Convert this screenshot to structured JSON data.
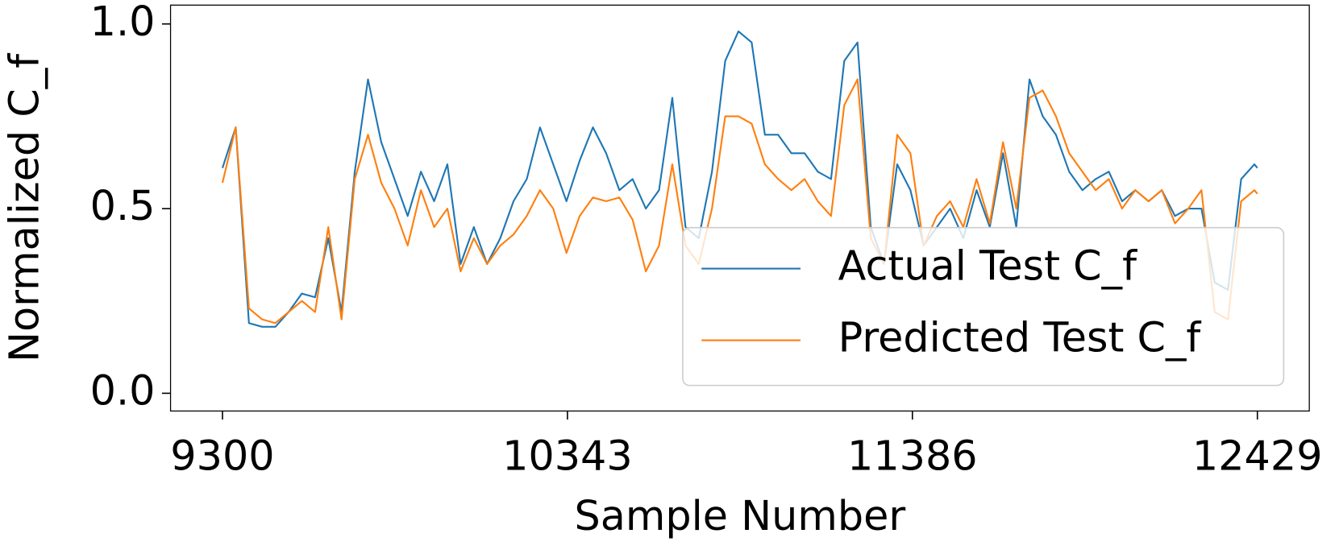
{
  "chart_data": {
    "type": "line",
    "xlabel": "Sample Number",
    "ylabel": "Normalized C_f",
    "x": [
      9300,
      9340,
      9380,
      9420,
      9460,
      9500,
      9540,
      9580,
      9620,
      9660,
      9700,
      9740,
      9780,
      9820,
      9860,
      9900,
      9940,
      9980,
      10020,
      10060,
      10100,
      10140,
      10180,
      10220,
      10260,
      10300,
      10340,
      10380,
      10420,
      10460,
      10500,
      10540,
      10580,
      10620,
      10660,
      10700,
      10740,
      10780,
      10820,
      10860,
      10900,
      10940,
      10980,
      11020,
      11060,
      11100,
      11140,
      11180,
      11220,
      11260,
      11300,
      11340,
      11380,
      11420,
      11460,
      11500,
      11540,
      11580,
      11620,
      11660,
      11700,
      11740,
      11780,
      11820,
      11860,
      11900,
      11940,
      11980,
      12020,
      12060,
      12100,
      12140,
      12180,
      12220,
      12260,
      12300,
      12340,
      12380,
      12420,
      12429
    ],
    "series": [
      {
        "name": "Actual Test C_f",
        "color": "#1f77b4",
        "values": [
          0.61,
          0.72,
          0.19,
          0.18,
          0.18,
          0.22,
          0.27,
          0.26,
          0.42,
          0.22,
          0.6,
          0.85,
          0.68,
          0.58,
          0.48,
          0.6,
          0.52,
          0.62,
          0.35,
          0.45,
          0.35,
          0.42,
          0.52,
          0.58,
          0.72,
          0.62,
          0.52,
          0.63,
          0.72,
          0.65,
          0.55,
          0.58,
          0.5,
          0.55,
          0.8,
          0.45,
          0.42,
          0.6,
          0.9,
          0.98,
          0.95,
          0.7,
          0.7,
          0.65,
          0.65,
          0.6,
          0.58,
          0.9,
          0.95,
          0.45,
          0.35,
          0.62,
          0.55,
          0.4,
          0.45,
          0.5,
          0.42,
          0.55,
          0.45,
          0.65,
          0.45,
          0.85,
          0.75,
          0.7,
          0.6,
          0.55,
          0.58,
          0.6,
          0.52,
          0.55,
          0.52,
          0.55,
          0.48,
          0.5,
          0.5,
          0.3,
          0.28,
          0.58,
          0.62,
          0.61
        ]
      },
      {
        "name": "Predicted Test C_f",
        "color": "#ff7f0e",
        "values": [
          0.57,
          0.72,
          0.23,
          0.2,
          0.19,
          0.22,
          0.25,
          0.22,
          0.45,
          0.2,
          0.58,
          0.7,
          0.57,
          0.5,
          0.4,
          0.55,
          0.45,
          0.5,
          0.33,
          0.42,
          0.35,
          0.4,
          0.43,
          0.48,
          0.55,
          0.5,
          0.38,
          0.48,
          0.53,
          0.52,
          0.53,
          0.47,
          0.33,
          0.4,
          0.62,
          0.4,
          0.35,
          0.5,
          0.75,
          0.75,
          0.73,
          0.62,
          0.58,
          0.55,
          0.58,
          0.52,
          0.48,
          0.78,
          0.85,
          0.42,
          0.35,
          0.7,
          0.65,
          0.4,
          0.48,
          0.52,
          0.45,
          0.58,
          0.46,
          0.68,
          0.5,
          0.8,
          0.82,
          0.75,
          0.65,
          0.6,
          0.55,
          0.58,
          0.5,
          0.55,
          0.52,
          0.55,
          0.46,
          0.5,
          0.55,
          0.22,
          0.2,
          0.52,
          0.55,
          0.54
        ]
      }
    ],
    "xlim": [
      9143,
      12586
    ],
    "xticks": [
      9300,
      10343,
      11386,
      12429
    ],
    "ylim": [
      -0.048,
      1.051
    ],
    "yticks": [
      {
        "value": 0,
        "label": "0.0"
      },
      {
        "value": 0.5,
        "label": "0.5"
      },
      {
        "value": 1,
        "label": "1.0"
      }
    ],
    "legend": "lower right"
  }
}
